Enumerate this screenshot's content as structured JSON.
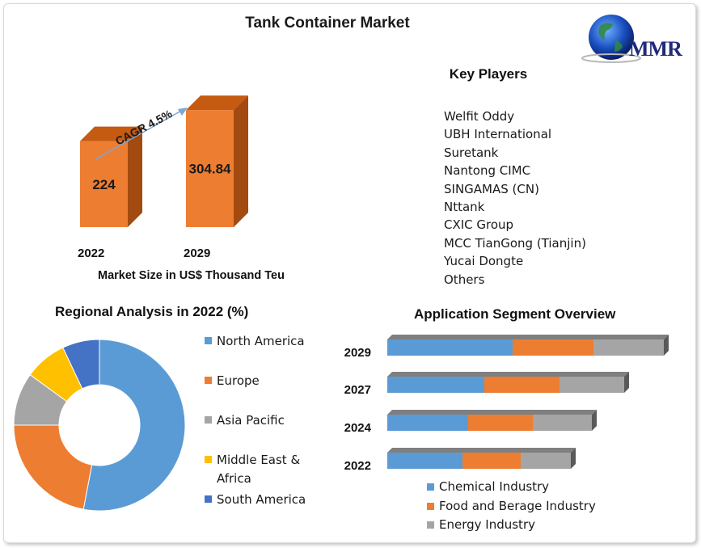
{
  "title": "Tank Container Market",
  "logo": {
    "text": "MMR",
    "icon": "globe-icon"
  },
  "key_players": {
    "title": "Key Players",
    "items": [
      "Welfit Oddy",
      "UBH International",
      "Suretank",
      "Nantong CIMC",
      "SINGAMAS (CN)",
      "Nttank",
      "CXIC Group",
      "MCC TianGong (Tianjin)",
      "Yucai Dongte",
      "Others"
    ]
  },
  "colors": {
    "bar_front": "#ED7D31",
    "bar_top": "#C55A11",
    "bar_side": "#A24A10",
    "blue": "#5B9BD5",
    "orange": "#ED7D31",
    "gray": "#A5A5A5",
    "yellow": "#FFC000",
    "darkblue": "#4472C4"
  },
  "chart_data": [
    {
      "type": "bar",
      "categories": [
        "2022",
        "2029"
      ],
      "values": [
        224,
        304.84
      ],
      "value_labels": [
        "224",
        "304.84"
      ],
      "xlabel": "Market Size in US$ Thousand Teu",
      "annotation": "CAGR 4.5%"
    },
    {
      "type": "pie",
      "title": "Regional Analysis in 2022 (%)",
      "categories": [
        "North America",
        "Europe",
        "Asia Pacific",
        "Middle East & Africa",
        "South America"
      ],
      "values": [
        53,
        22,
        10,
        8,
        7
      ],
      "colors": [
        "#5B9BD5",
        "#ED7D31",
        "#A5A5A5",
        "#FFC000",
        "#4472C4"
      ],
      "legend": "right"
    },
    {
      "type": "bar",
      "orientation": "horizontal",
      "stacked": true,
      "title": "Application Segment Overview",
      "categories": [
        "2029",
        "2027",
        "2024",
        "2022"
      ],
      "series": [
        {
          "name": "Chemical Industry",
          "values": [
            155,
            120,
            100,
            93
          ]
        },
        {
          "name": "Food and Berage Industry",
          "values": [
            100,
            93,
            80,
            72
          ]
        },
        {
          "name": "Energy Industry",
          "values": [
            87,
            80,
            73,
            62
          ]
        }
      ],
      "legend": "bottom"
    }
  ]
}
